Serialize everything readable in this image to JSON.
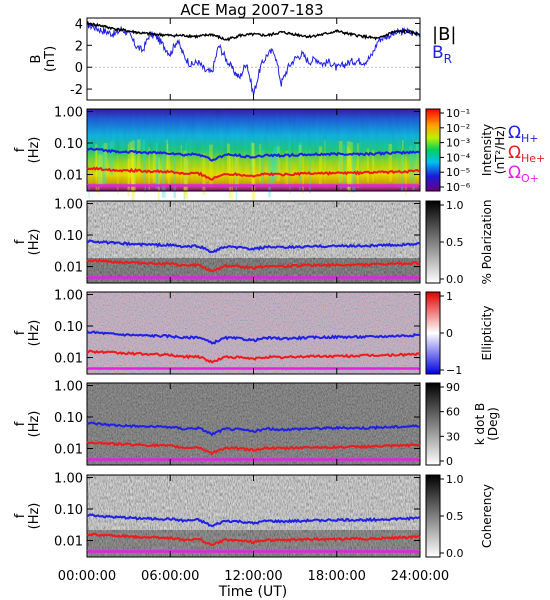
{
  "title": "ACE Mag 2007-183",
  "xlabel": "Time (UT)",
  "x_ticks": [
    "00:00:00",
    "06:00:00",
    "12:00:00",
    "18:00:00",
    "24:00:00"
  ],
  "legend_b": {
    "total": "|B|",
    "radial_base": "B",
    "radial_sub": "R"
  },
  "legend_freq": [
    {
      "base": "Ω",
      "sub": "H+",
      "color": "#1f1fe6"
    },
    {
      "base": "Ω",
      "sub": "He+",
      "color": "#e61f1f"
    },
    {
      "base": "Ω",
      "sub": "O+",
      "color": "#e61fe6"
    }
  ],
  "colors": {
    "b_total": "#000000",
    "b_radial": "#1f1fe6",
    "f_h": "#1f1fe6",
    "f_he": "#f01a1a",
    "f_o": "#e61fe6"
  },
  "chart_data": [
    {
      "type": "line",
      "panel": "magnetic-field",
      "ylabel_base": "B",
      "ylabel_unit": "(nT)",
      "x_unit": "hours UT",
      "xlim": [
        0,
        24
      ],
      "ylim": [
        -3,
        4.5
      ],
      "y_ticks": [
        "4",
        "2",
        "0",
        "-2"
      ],
      "series": [
        {
          "name": "|B|",
          "x": [
            0,
            1,
            2,
            3,
            4,
            5,
            6,
            7,
            8,
            9,
            10,
            11,
            12,
            13,
            14,
            15,
            16,
            17,
            18,
            19,
            20,
            21,
            22,
            23,
            24
          ],
          "values": [
            4.0,
            3.8,
            3.5,
            3.3,
            3.1,
            3.0,
            2.9,
            2.9,
            2.8,
            3.0,
            2.5,
            2.9,
            3.0,
            2.9,
            3.2,
            3.0,
            2.8,
            3.0,
            3.3,
            3.0,
            2.8,
            2.6,
            3.2,
            3.3,
            3.0
          ]
        },
        {
          "name": "B_R",
          "x": [
            0,
            0.5,
            1,
            1.5,
            2,
            2.5,
            3,
            3.5,
            4,
            4.5,
            5,
            5.5,
            6,
            6.5,
            7,
            7.5,
            8,
            8.5,
            9,
            9.5,
            10,
            10.5,
            11,
            11.5,
            12,
            12.5,
            13,
            13.5,
            14,
            14.5,
            15,
            15.5,
            16,
            16.5,
            17,
            17.5,
            18,
            18.5,
            19,
            19.5,
            20,
            20.5,
            21,
            21.5,
            22,
            22.5,
            23,
            23.5,
            24
          ],
          "values": [
            3.9,
            3.7,
            3.4,
            3.2,
            3.0,
            3.5,
            3.1,
            2.0,
            1.5,
            3.0,
            2.8,
            2.0,
            1.2,
            2.5,
            1.0,
            0.2,
            0.5,
            -0.3,
            -0.5,
            2.0,
            0.8,
            -0.2,
            -1.0,
            0.5,
            -2.5,
            0.0,
            1.2,
            1.5,
            -1.5,
            0.0,
            0.8,
            1.2,
            0.5,
            0.8,
            0.3,
            0.5,
            -0.1,
            0.2,
            0.5,
            0.6,
            0.5,
            1.0,
            2.5,
            2.8,
            3.0,
            3.2,
            3.3,
            3.1,
            3.2
          ]
        }
      ]
    },
    {
      "type": "heatmap",
      "panel": "intensity",
      "ylabel_base": "f",
      "ylabel_unit": "(Hz)",
      "y_scale": "log",
      "ylim": [
        0.003,
        1.2
      ],
      "y_ticks": [
        "1.00",
        "0.10",
        "0.01"
      ],
      "colorbar": {
        "label1": "Intensity",
        "label2": "(nT²/Hz)",
        "scale": "log",
        "ticks": [
          "10⁻¹",
          "10⁻²",
          "10⁻³",
          "10⁻⁴",
          "10⁻⁵",
          "10⁻⁶"
        ],
        "colormap": "rainbow"
      }
    },
    {
      "type": "heatmap",
      "panel": "polarization",
      "ylabel_base": "f",
      "ylabel_unit": "(Hz)",
      "y_scale": "log",
      "y_ticks": [
        "1.00",
        "0.10",
        "0.01"
      ],
      "colorbar": {
        "label1": "% Polarization",
        "ticks": [
          "1.0",
          "0.5",
          "0.0"
        ],
        "colormap": "gray"
      }
    },
    {
      "type": "heatmap",
      "panel": "ellipticity",
      "ylabel_base": "f",
      "ylabel_unit": "(Hz)",
      "y_scale": "log",
      "y_ticks": [
        "1.00",
        "0.10",
        "0.01"
      ],
      "colorbar": {
        "label1": "Ellipticity",
        "ticks": [
          "1",
          "0",
          "−1"
        ],
        "colormap": "blue-white-red"
      }
    },
    {
      "type": "heatmap",
      "panel": "k-dot-b",
      "ylabel_base": "f",
      "ylabel_unit": "(Hz)",
      "y_scale": "log",
      "y_ticks": [
        "1.00",
        "0.10",
        "0.01"
      ],
      "colorbar": {
        "label1": "k dot B",
        "label2": "(Deg)",
        "ticks": [
          "90",
          "60",
          "30",
          "0"
        ],
        "colormap": "gray"
      }
    },
    {
      "type": "heatmap",
      "panel": "coherency",
      "ylabel_base": "f",
      "ylabel_unit": "(Hz)",
      "y_scale": "log",
      "y_ticks": [
        "1.00",
        "0.10",
        "0.01"
      ],
      "colorbar": {
        "label1": "Coherency",
        "ticks": [
          "1.0",
          "0.5",
          "0.0"
        ],
        "colormap": "gray"
      }
    },
    {
      "type": "line",
      "panel": "ion-gyrofrequencies",
      "x_unit": "hours UT",
      "series": [
        {
          "name": "Ω_H+",
          "x": [
            0,
            2,
            4,
            6,
            7,
            8,
            9,
            10,
            11,
            12,
            13,
            14,
            16,
            18,
            20,
            22,
            24
          ],
          "values": [
            0.065,
            0.055,
            0.05,
            0.048,
            0.042,
            0.045,
            0.028,
            0.042,
            0.04,
            0.035,
            0.042,
            0.04,
            0.043,
            0.045,
            0.045,
            0.048,
            0.052
          ]
        },
        {
          "name": "Ω_He+",
          "x": [
            0,
            2,
            4,
            6,
            7,
            8,
            9,
            10,
            11,
            12,
            13,
            14,
            16,
            18,
            20,
            22,
            24
          ],
          "values": [
            0.016,
            0.014,
            0.013,
            0.012,
            0.0105,
            0.011,
            0.007,
            0.0105,
            0.01,
            0.009,
            0.0105,
            0.01,
            0.011,
            0.011,
            0.0115,
            0.012,
            0.013
          ]
        },
        {
          "name": "Ω_O+",
          "x": [
            0,
            6,
            12,
            18,
            24
          ],
          "values": [
            0.0045,
            0.0045,
            0.0045,
            0.0045,
            0.0045
          ]
        }
      ]
    }
  ]
}
